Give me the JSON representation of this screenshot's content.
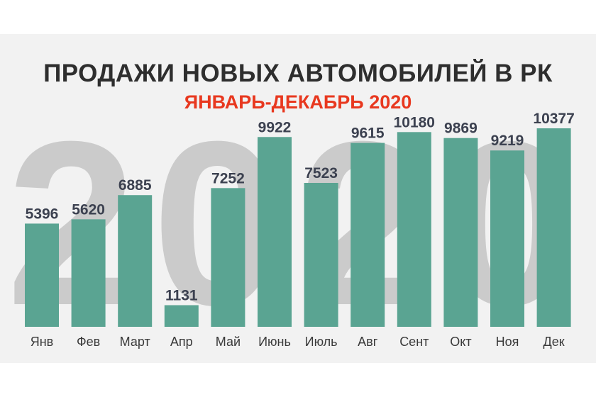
{
  "title": "ПРОДАЖИ НОВЫХ АВТОМОБИЛЕЙ В РК",
  "subtitle": "ЯНВАРЬ-ДЕКАБРЬ 2020",
  "watermark": "2020",
  "colors": {
    "bar": "#5aa492",
    "title": "#2e2e2e",
    "subtitle": "#e8381f",
    "value_label": "#3c4150",
    "category_label": "#3a3a3a",
    "panel": "#f2f2f2",
    "watermark": "#cbcbcb"
  },
  "chart_data": {
    "type": "bar",
    "title": "ПРОДАЖИ НОВЫХ АВТОМОБИЛЕЙ В РК",
    "subtitle": "ЯНВАРЬ-ДЕКАБРЬ 2020",
    "categories": [
      "Янв",
      "Фев",
      "Март",
      "Апр",
      "Май",
      "Июнь",
      "Июль",
      "Авг",
      "Сент",
      "Окт",
      "Ноя",
      "Дек"
    ],
    "values": [
      5396,
      5620,
      6885,
      1131,
      7252,
      9922,
      7523,
      9615,
      10180,
      9869,
      9219,
      10377
    ],
    "ylim": [
      0,
      10377
    ],
    "grid": false,
    "legend": "none",
    "data_labels": true
  }
}
